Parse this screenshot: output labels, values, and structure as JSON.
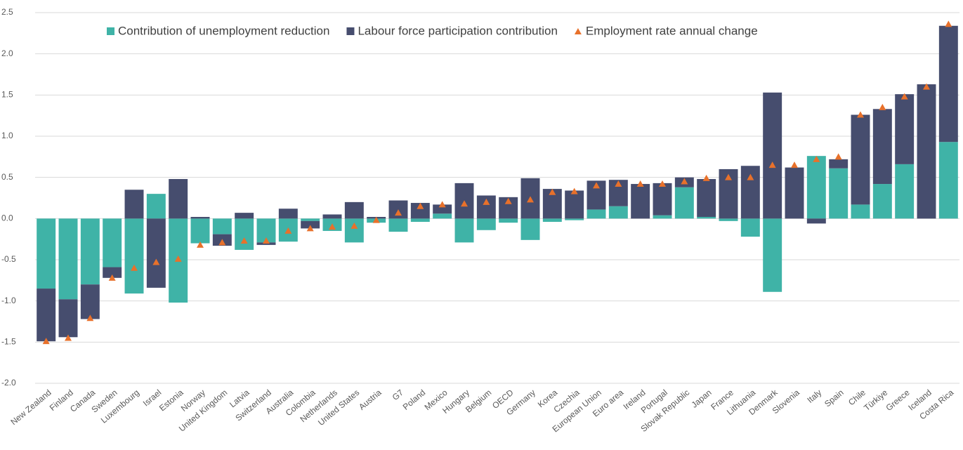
{
  "chart_data": {
    "type": "bar",
    "categories": [
      "New Zealand",
      "Finland",
      "Canada",
      "Sweden",
      "Luxembourg",
      "Israel",
      "Estonia",
      "Norway",
      "United Kingdom",
      "Latvia",
      "Switzerland",
      "Australia",
      "Colombia",
      "Netherlands",
      "United States",
      "Austria",
      "G7",
      "Poland",
      "Mexico",
      "Hungary",
      "Belgium",
      "OECD",
      "Germany",
      "Korea",
      "Czechia",
      "European Union",
      "Euro area",
      "Ireland",
      "Portugal",
      "Slovak Republic",
      "Japan",
      "France",
      "Lithuania",
      "Denmark",
      "Slovenia",
      "Italy",
      "Spain",
      "Chile",
      "Türkiye",
      "Greece",
      "Iceland",
      "Costa Rica"
    ],
    "series": [
      {
        "name": "Contribution of unemployment reduction",
        "color": "#3fb3a7",
        "stack": true,
        "values": [
          -0.85,
          -0.98,
          -0.8,
          -0.59,
          -0.91,
          0.3,
          -1.02,
          -0.3,
          -0.19,
          -0.38,
          -0.29,
          -0.28,
          -0.03,
          -0.15,
          -0.29,
          -0.05,
          -0.16,
          -0.04,
          0.06,
          -0.29,
          -0.14,
          -0.05,
          -0.26,
          -0.04,
          -0.02,
          0.11,
          0.15,
          0.0,
          0.04,
          0.38,
          0.02,
          -0.03,
          -0.22,
          -0.89,
          0.0,
          0.76,
          0.61,
          0.17,
          0.42,
          0.66,
          0.0,
          0.93
        ]
      },
      {
        "name": "Labour force participation contribution",
        "color": "#464d6e",
        "stack": true,
        "values": [
          -0.64,
          -0.46,
          -0.42,
          -0.13,
          0.35,
          -0.84,
          0.48,
          0.02,
          -0.14,
          0.07,
          -0.03,
          0.12,
          -0.09,
          0.05,
          0.2,
          0.02,
          0.22,
          0.19,
          0.11,
          0.43,
          0.28,
          0.26,
          0.49,
          0.36,
          0.34,
          0.35,
          0.32,
          0.42,
          0.39,
          0.12,
          0.46,
          0.6,
          0.64,
          1.53,
          0.62,
          -0.06,
          0.11,
          1.09,
          0.91,
          0.85,
          1.63,
          1.41
        ]
      },
      {
        "name": "Employment rate annual change",
        "color": "#e8712b",
        "marker": "triangle",
        "values": [
          -1.49,
          -1.45,
          -1.21,
          -0.72,
          -0.6,
          -0.53,
          -0.49,
          -0.32,
          -0.29,
          -0.27,
          -0.27,
          -0.15,
          -0.12,
          -0.1,
          -0.09,
          -0.02,
          0.07,
          0.15,
          0.17,
          0.18,
          0.2,
          0.21,
          0.23,
          0.32,
          0.33,
          0.4,
          0.42,
          0.42,
          0.42,
          0.45,
          0.49,
          0.5,
          0.5,
          0.65,
          0.65,
          0.72,
          0.75,
          1.26,
          1.35,
          1.48,
          1.6,
          2.36
        ]
      }
    ],
    "ylim": [
      -2.0,
      2.5
    ],
    "yticks": [
      2.5,
      {
        "value": 2.0,
        "label": "2.0"
      },
      1.5,
      {
        "value": 1.0,
        "label": "1.0"
      },
      0.5,
      {
        "value": 0.0,
        "label": "0.0"
      },
      -0.5,
      {
        "value": -1.0,
        "label": "-1.0"
      },
      -1.5,
      {
        "value": -2.0,
        "label": "-2.0"
      }
    ],
    "grid": true,
    "legend": "top"
  }
}
